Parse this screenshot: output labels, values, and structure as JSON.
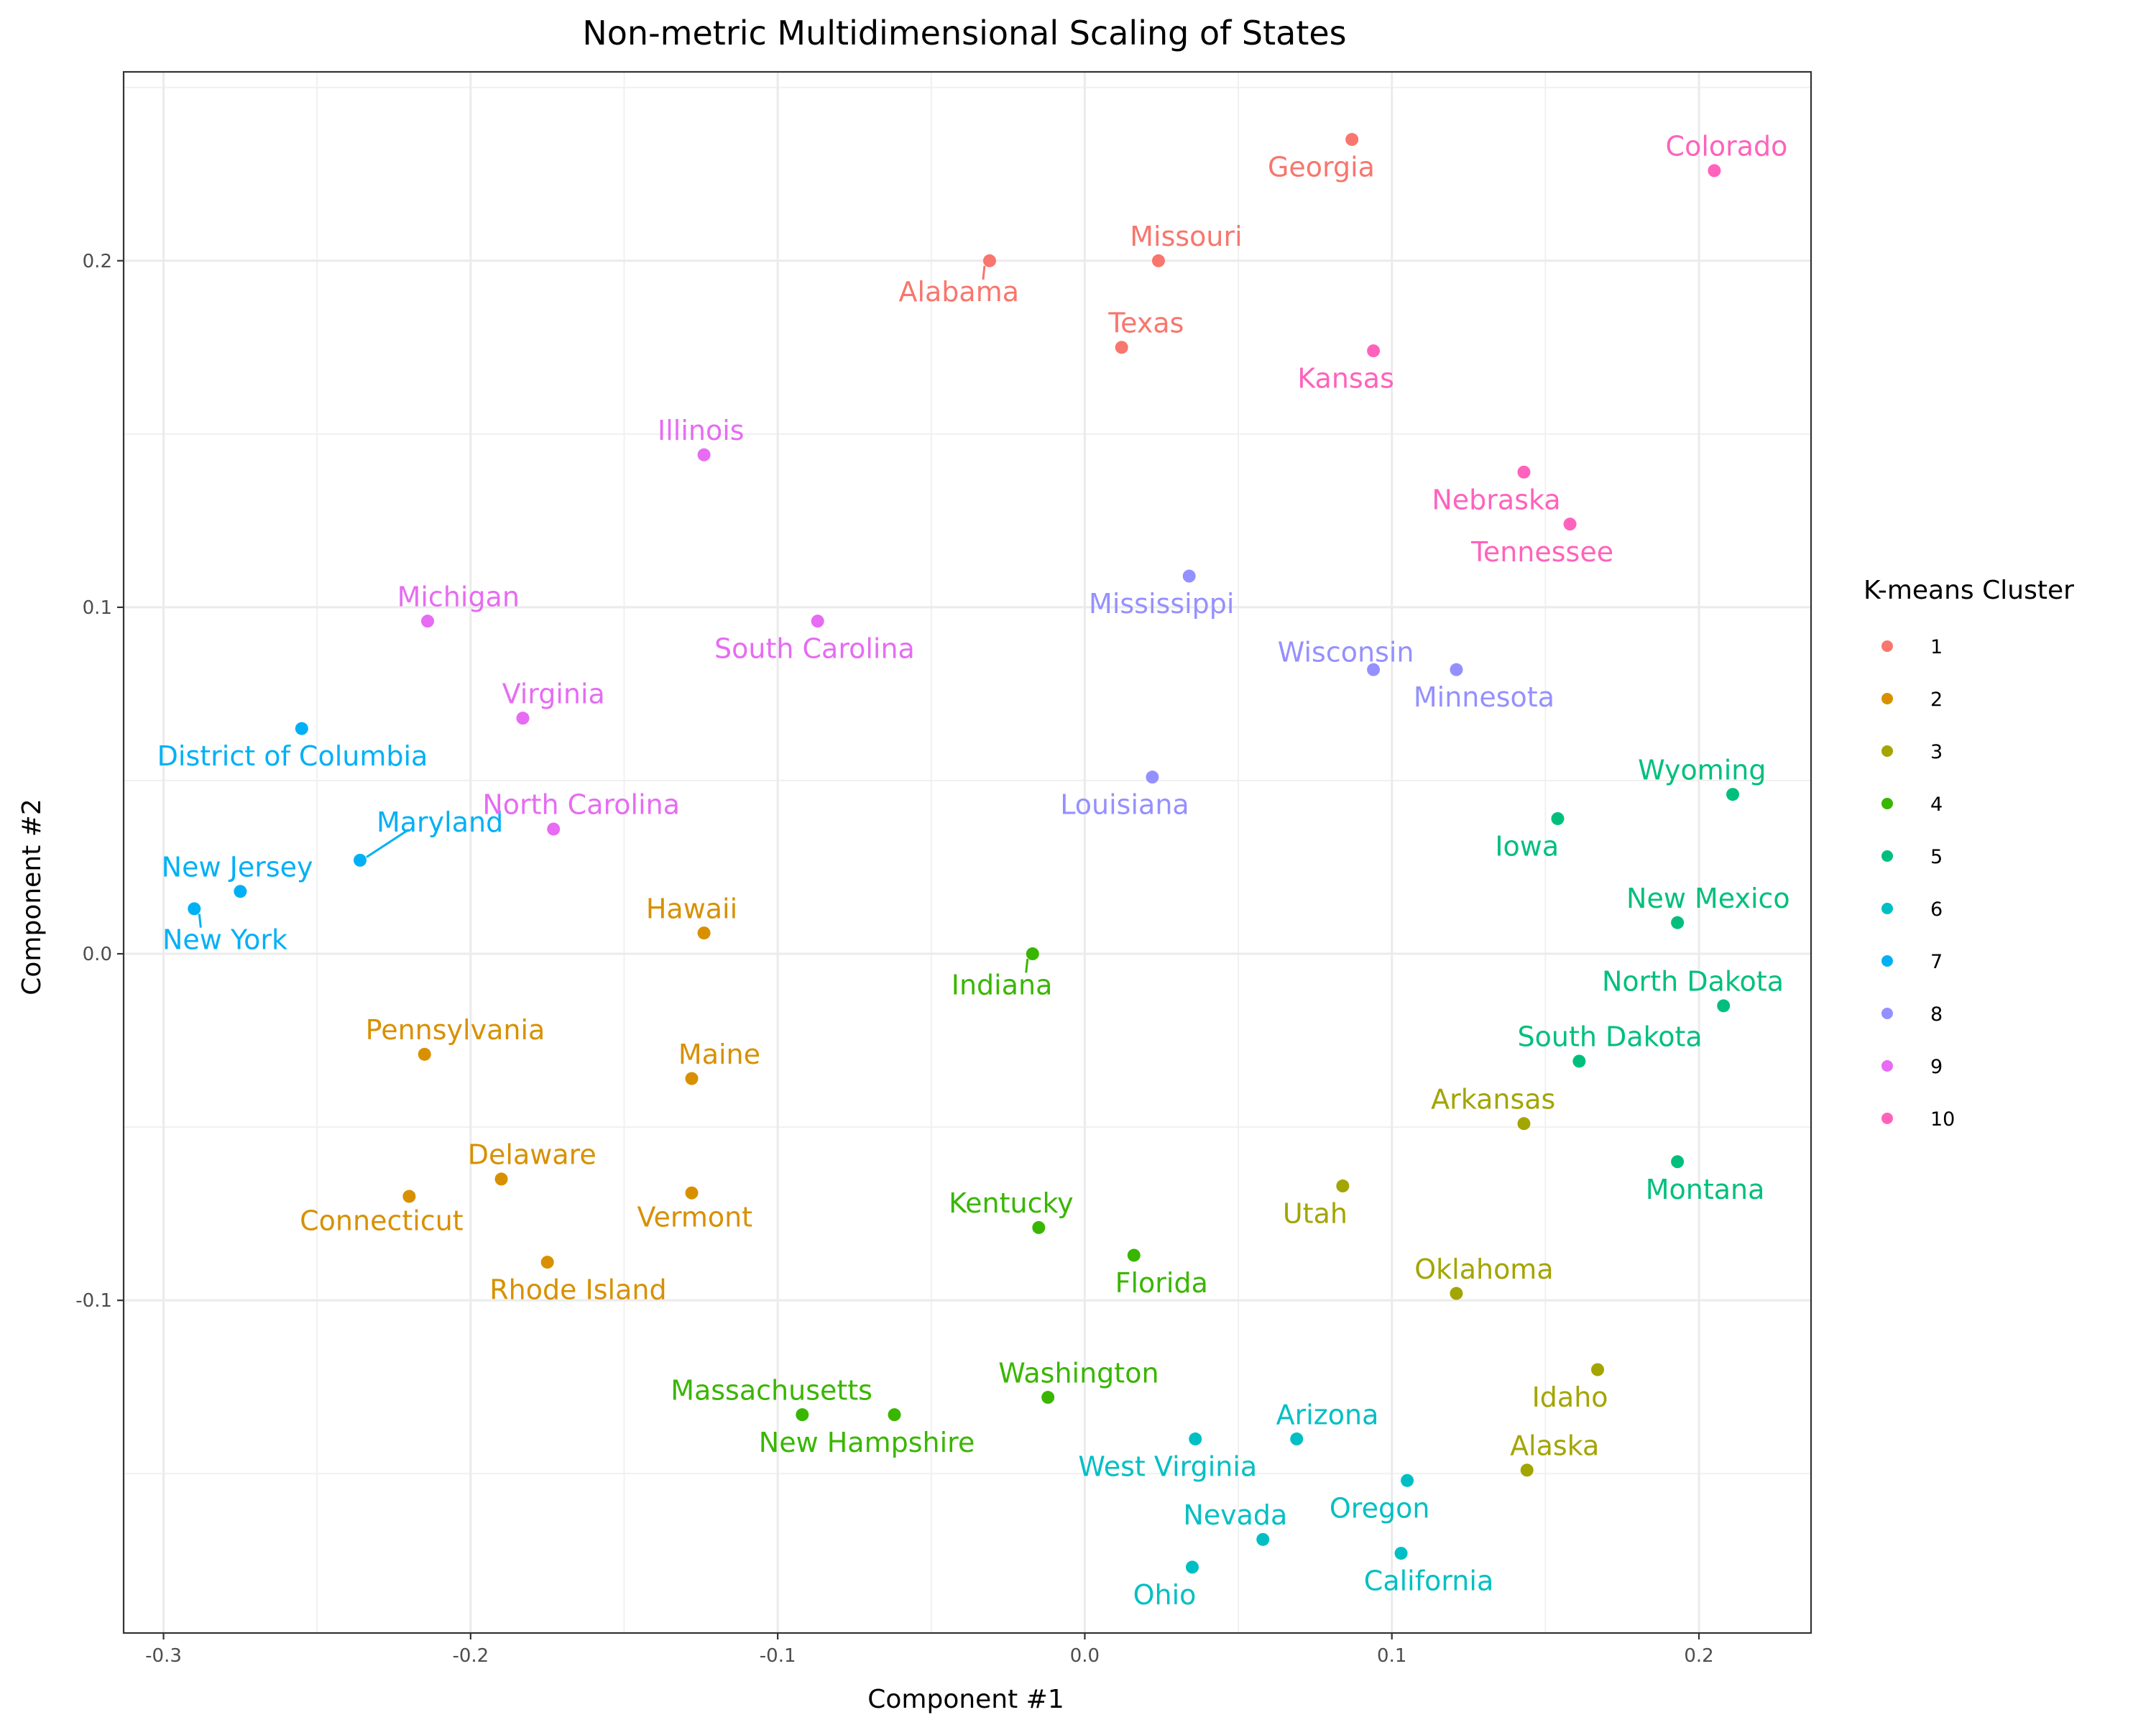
{
  "chart_data": {
    "type": "scatter",
    "title": "Non-metric Multidimensional Scaling of States",
    "xlabel": "Component #1",
    "ylabel": "Component #2",
    "xlim": [
      -0.313,
      0.2365
    ],
    "ylim": [
      -0.196,
      0.2545
    ],
    "x_ticks": [
      -0.3,
      -0.2,
      -0.1,
      0.0,
      0.1,
      0.2
    ],
    "x_tick_labels": [
      "-0.3",
      "-0.2",
      "-0.1",
      "0.0",
      "0.1",
      "0.2"
    ],
    "y_ticks": [
      -0.1,
      0.0,
      0.1,
      0.2
    ],
    "y_tick_labels": [
      "-0.1",
      "0.0",
      "0.1",
      "0.2"
    ],
    "grid": true,
    "legend": {
      "title": "K-means Cluster",
      "position": "right",
      "entries": [
        {
          "label": "1",
          "color": "#F8766D"
        },
        {
          "label": "2",
          "color": "#D89000"
        },
        {
          "label": "3",
          "color": "#A3A500"
        },
        {
          "label": "4",
          "color": "#39B600"
        },
        {
          "label": "5",
          "color": "#00BF7D"
        },
        {
          "label": "6",
          "color": "#00BFC4"
        },
        {
          "label": "7",
          "color": "#00B0F6"
        },
        {
          "label": "8",
          "color": "#9590FF"
        },
        {
          "label": "9",
          "color": "#E76BF3"
        },
        {
          "label": "10",
          "color": "#FF62BC"
        }
      ]
    },
    "points": [
      {
        "name": "Georgia",
        "x": 0.087,
        "y": 0.235,
        "cluster": 1,
        "lx": 0.077,
        "ly": 0.227
      },
      {
        "name": "Missouri",
        "x": 0.024,
        "y": 0.2,
        "cluster": 1,
        "lx": 0.033,
        "ly": 0.207
      },
      {
        "name": "Alabama",
        "x": -0.031,
        "y": 0.2,
        "cluster": 1,
        "lx": -0.041,
        "ly": 0.191
      },
      {
        "name": "Texas",
        "x": 0.012,
        "y": 0.175,
        "cluster": 1,
        "lx": 0.02,
        "ly": 0.182
      },
      {
        "name": "Hawaii",
        "x": -0.124,
        "y": 0.006,
        "cluster": 2,
        "lx": -0.128,
        "ly": 0.013
      },
      {
        "name": "Pennsylvania",
        "x": -0.215,
        "y": -0.029,
        "cluster": 2,
        "lx": -0.205,
        "ly": -0.022
      },
      {
        "name": "Maine",
        "x": -0.128,
        "y": -0.036,
        "cluster": 2,
        "lx": -0.119,
        "ly": -0.029
      },
      {
        "name": "Delaware",
        "x": -0.19,
        "y": -0.065,
        "cluster": 2,
        "lx": -0.18,
        "ly": -0.058
      },
      {
        "name": "Connecticut",
        "x": -0.22,
        "y": -0.07,
        "cluster": 2,
        "lx": -0.229,
        "ly": -0.077
      },
      {
        "name": "Vermont",
        "x": -0.128,
        "y": -0.069,
        "cluster": 2,
        "lx": -0.127,
        "ly": -0.076
      },
      {
        "name": "Rhode Island",
        "x": -0.175,
        "y": -0.089,
        "cluster": 2,
        "lx": -0.165,
        "ly": -0.097
      },
      {
        "name": "Arkansas",
        "x": 0.143,
        "y": -0.049,
        "cluster": 3,
        "lx": 0.133,
        "ly": -0.042
      },
      {
        "name": "Utah",
        "x": 0.084,
        "y": -0.067,
        "cluster": 3,
        "lx": 0.075,
        "ly": -0.075
      },
      {
        "name": "Oklahoma",
        "x": 0.121,
        "y": -0.098,
        "cluster": 3,
        "lx": 0.13,
        "ly": -0.091
      },
      {
        "name": "Idaho",
        "x": 0.167,
        "y": -0.12,
        "cluster": 3,
        "lx": 0.158,
        "ly": -0.128
      },
      {
        "name": "Alaska",
        "x": 0.144,
        "y": -0.149,
        "cluster": 3,
        "lx": 0.153,
        "ly": -0.142
      },
      {
        "name": "Indiana",
        "x": -0.017,
        "y": 0.0,
        "cluster": 4,
        "lx": -0.027,
        "ly": -0.009
      },
      {
        "name": "Kentucky",
        "x": -0.015,
        "y": -0.079,
        "cluster": 4,
        "lx": -0.024,
        "ly": -0.072
      },
      {
        "name": "Florida",
        "x": 0.016,
        "y": -0.087,
        "cluster": 4,
        "lx": 0.025,
        "ly": -0.095
      },
      {
        "name": "Washington",
        "x": -0.012,
        "y": -0.128,
        "cluster": 4,
        "lx": -0.002,
        "ly": -0.121
      },
      {
        "name": "Massachusetts",
        "x": -0.092,
        "y": -0.133,
        "cluster": 4,
        "lx": -0.102,
        "ly": -0.126
      },
      {
        "name": "New Hampshire",
        "x": -0.062,
        "y": -0.133,
        "cluster": 4,
        "lx": -0.071,
        "ly": -0.141
      },
      {
        "name": "Wyoming",
        "x": 0.211,
        "y": 0.046,
        "cluster": 5,
        "lx": 0.201,
        "ly": 0.053
      },
      {
        "name": "Iowa",
        "x": 0.154,
        "y": 0.039,
        "cluster": 5,
        "lx": 0.144,
        "ly": 0.031
      },
      {
        "name": "New Mexico",
        "x": 0.193,
        "y": 0.009,
        "cluster": 5,
        "lx": 0.203,
        "ly": 0.016
      },
      {
        "name": "North Dakota",
        "x": 0.208,
        "y": -0.015,
        "cluster": 5,
        "lx": 0.198,
        "ly": -0.008
      },
      {
        "name": "South Dakota",
        "x": 0.161,
        "y": -0.031,
        "cluster": 5,
        "lx": 0.171,
        "ly": -0.024
      },
      {
        "name": "Montana",
        "x": 0.193,
        "y": -0.06,
        "cluster": 5,
        "lx": 0.202,
        "ly": -0.068
      },
      {
        "name": "Arizona",
        "x": 0.069,
        "y": -0.14,
        "cluster": 6,
        "lx": 0.079,
        "ly": -0.133
      },
      {
        "name": "West Virginia",
        "x": 0.036,
        "y": -0.14,
        "cluster": 6,
        "lx": 0.027,
        "ly": -0.148
      },
      {
        "name": "Oregon",
        "x": 0.105,
        "y": -0.152,
        "cluster": 6,
        "lx": 0.096,
        "ly": -0.16
      },
      {
        "name": "Nevada",
        "x": 0.058,
        "y": -0.169,
        "cluster": 6,
        "lx": 0.049,
        "ly": -0.162
      },
      {
        "name": "California",
        "x": 0.103,
        "y": -0.173,
        "cluster": 6,
        "lx": 0.112,
        "ly": -0.181
      },
      {
        "name": "Ohio",
        "x": 0.035,
        "y": -0.177,
        "cluster": 6,
        "lx": 0.026,
        "ly": -0.185
      },
      {
        "name": "District of Columbia",
        "x": -0.255,
        "y": 0.065,
        "cluster": 7,
        "lx": -0.258,
        "ly": 0.057
      },
      {
        "name": "Maryland",
        "x": -0.236,
        "y": 0.027,
        "cluster": 7,
        "lx": -0.21,
        "ly": 0.038
      },
      {
        "name": "New Jersey",
        "x": -0.275,
        "y": 0.018,
        "cluster": 7,
        "lx": -0.276,
        "ly": 0.025
      },
      {
        "name": "New York",
        "x": -0.29,
        "y": 0.013,
        "cluster": 7,
        "lx": -0.28,
        "ly": 0.004
      },
      {
        "name": "Mississippi",
        "x": 0.034,
        "y": 0.109,
        "cluster": 8,
        "lx": 0.025,
        "ly": 0.101
      },
      {
        "name": "Wisconsin",
        "x": 0.094,
        "y": 0.082,
        "cluster": 8,
        "lx": 0.085,
        "ly": 0.087
      },
      {
        "name": "Minnesota",
        "x": 0.121,
        "y": 0.082,
        "cluster": 8,
        "lx": 0.13,
        "ly": 0.074
      },
      {
        "name": "Louisiana",
        "x": 0.022,
        "y": 0.051,
        "cluster": 8,
        "lx": 0.013,
        "ly": 0.043
      },
      {
        "name": "Illinois",
        "x": -0.124,
        "y": 0.144,
        "cluster": 9,
        "lx": -0.125,
        "ly": 0.151
      },
      {
        "name": "Michigan",
        "x": -0.214,
        "y": 0.096,
        "cluster": 9,
        "lx": -0.204,
        "ly": 0.103
      },
      {
        "name": "South Carolina",
        "x": -0.087,
        "y": 0.096,
        "cluster": 9,
        "lx": -0.088,
        "ly": 0.088
      },
      {
        "name": "Virginia",
        "x": -0.183,
        "y": 0.068,
        "cluster": 9,
        "lx": -0.173,
        "ly": 0.075
      },
      {
        "name": "North Carolina",
        "x": -0.173,
        "y": 0.036,
        "cluster": 9,
        "lx": -0.164,
        "ly": 0.043
      },
      {
        "name": "Colorado",
        "x": 0.205,
        "y": 0.226,
        "cluster": 10,
        "lx": 0.209,
        "ly": 0.233
      },
      {
        "name": "Kansas",
        "x": 0.094,
        "y": 0.174,
        "cluster": 10,
        "lx": 0.085,
        "ly": 0.166
      },
      {
        "name": "Nebraska",
        "x": 0.143,
        "y": 0.139,
        "cluster": 10,
        "lx": 0.134,
        "ly": 0.131
      },
      {
        "name": "Tennessee",
        "x": 0.158,
        "y": 0.124,
        "cluster": 10,
        "lx": 0.149,
        "ly": 0.116
      }
    ]
  }
}
